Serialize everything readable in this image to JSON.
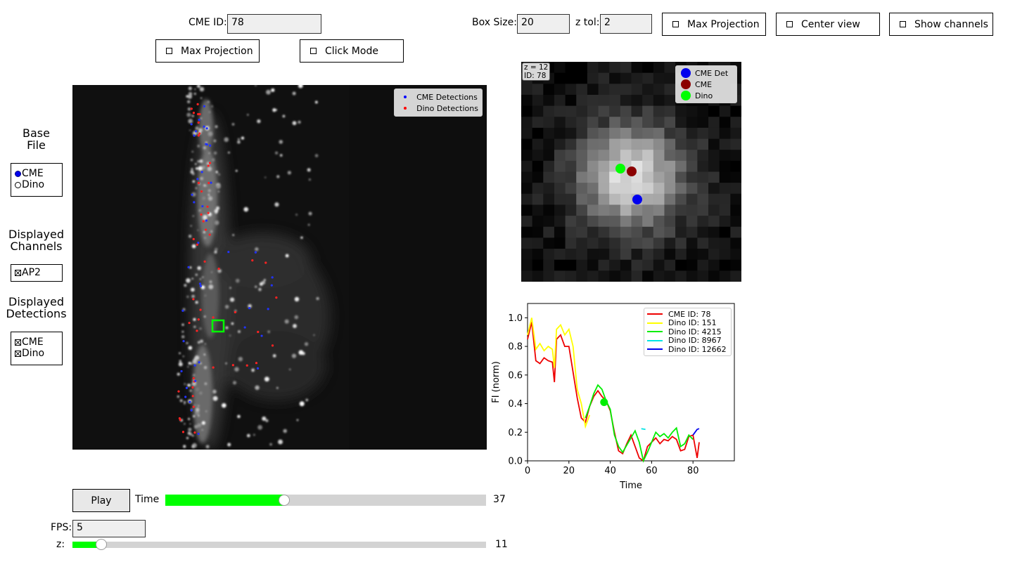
{
  "top": {
    "cme_id_label": "CME ID:",
    "cme_id_value": "78",
    "box_size_label": "Box Size:",
    "box_size_value": "20",
    "z_tol_label": "z tol:",
    "z_tol_value": "2",
    "max_projection_label": "Max Projection",
    "center_view_label": "Center view",
    "show_channels_label": "Show channels",
    "max_projection2_label": "Max Projection",
    "click_mode_label": "Click Mode"
  },
  "sidebar": {
    "base_file_title": "Base\nFile",
    "base_file_options": [
      {
        "label": "CME",
        "selected": true
      },
      {
        "label": "Dino",
        "selected": false
      }
    ],
    "channels_title": "Displayed\nChannels",
    "channels": [
      {
        "label": "AP2",
        "checked": true
      }
    ],
    "detections_title": "Displayed\nDetections",
    "detections": [
      {
        "label": "CME",
        "checked": true
      },
      {
        "label": "Dino",
        "checked": true
      }
    ]
  },
  "main_view": {
    "legend": [
      {
        "label": "CME Detections",
        "color": "#0000ff"
      },
      {
        "label": "Dino Detections",
        "color": "#ff0000"
      }
    ]
  },
  "zoom_view": {
    "info_z": "z = 12",
    "info_id": "ID: 78",
    "legend": [
      {
        "label": "CME Det",
        "color": "#0000ee"
      },
      {
        "label": "CME",
        "color": "#8b0000"
      },
      {
        "label": "Dino",
        "color": "#00ff00"
      }
    ]
  },
  "controls": {
    "play_label": "Play",
    "time_label": "Time",
    "time_value": "37",
    "time_fraction": 0.37,
    "fps_label": "FPS:",
    "fps_value": "5",
    "z_label": "z:",
    "z_value": "11",
    "z_fraction": 0.07,
    "slider_fill_color": "#00ff00"
  },
  "chart_data": {
    "type": "line",
    "title": "",
    "xlabel": "Time",
    "ylabel": "FI (norm)",
    "xlim": [
      0,
      100
    ],
    "ylim": [
      0,
      1.1
    ],
    "xticks": [
      0,
      20,
      40,
      60,
      80
    ],
    "yticks": [
      0.0,
      0.2,
      0.4,
      0.6,
      0.8,
      1.0
    ],
    "legend_position": "top-right",
    "marker": {
      "x": 37,
      "y": 0.41,
      "color": "#00ee00"
    },
    "series": [
      {
        "name": "CME ID: 78",
        "color": "#ee0000",
        "x": [
          0,
          2,
          4,
          6,
          8,
          10,
          12,
          13,
          14,
          16,
          18,
          20,
          22,
          24,
          26,
          28,
          30,
          32,
          34,
          36,
          38,
          40,
          42,
          44,
          46,
          48,
          50,
          52,
          54,
          56,
          58,
          60,
          62,
          64,
          66,
          68,
          70,
          72,
          74,
          76,
          78,
          80,
          82,
          83
        ],
        "y": [
          0.85,
          0.97,
          0.7,
          0.68,
          0.72,
          0.7,
          0.69,
          0.55,
          0.85,
          0.88,
          0.8,
          0.8,
          0.62,
          0.44,
          0.3,
          0.27,
          0.38,
          0.45,
          0.49,
          0.45,
          0.42,
          0.35,
          0.2,
          0.07,
          0.05,
          0.12,
          0.18,
          0.1,
          0.02,
          0.0,
          0.1,
          0.13,
          0.16,
          0.12,
          0.15,
          0.14,
          0.17,
          0.15,
          0.07,
          0.08,
          0.17,
          0.18,
          0.02,
          0.13
        ]
      },
      {
        "name": "Dino ID: 151",
        "color": "#ffff00",
        "x": [
          0,
          2,
          4,
          6,
          8,
          10,
          12,
          13,
          14,
          16,
          18,
          20,
          22,
          24,
          26,
          28,
          30
        ],
        "y": [
          0.88,
          1.0,
          0.78,
          0.82,
          0.77,
          0.8,
          0.78,
          0.65,
          0.92,
          0.95,
          0.88,
          0.92,
          0.8,
          0.5,
          0.4,
          0.24,
          0.32
        ]
      },
      {
        "name": "Dino ID: 4215",
        "color": "#00ee00",
        "x": [
          28,
          30,
          32,
          34,
          36,
          38,
          40,
          42,
          44,
          46,
          48,
          50,
          52,
          54,
          56,
          58,
          60,
          62,
          64,
          66,
          68,
          70,
          72,
          74,
          76,
          78,
          80
        ],
        "y": [
          0.3,
          0.38,
          0.47,
          0.53,
          0.5,
          0.42,
          0.36,
          0.18,
          0.1,
          0.06,
          0.11,
          0.16,
          0.21,
          0.13,
          0.0,
          0.06,
          0.13,
          0.2,
          0.17,
          0.19,
          0.16,
          0.2,
          0.23,
          0.1,
          0.12,
          0.18,
          0.15
        ]
      },
      {
        "name": "Dino ID: 8967",
        "color": "#00e5e5",
        "x": [
          55,
          57
        ],
        "y": [
          0.225,
          0.22
        ]
      },
      {
        "name": "Dino ID: 12662",
        "color": "#0000ee",
        "x": [
          80,
          82,
          83
        ],
        "y": [
          0.18,
          0.22,
          0.225
        ]
      }
    ]
  }
}
